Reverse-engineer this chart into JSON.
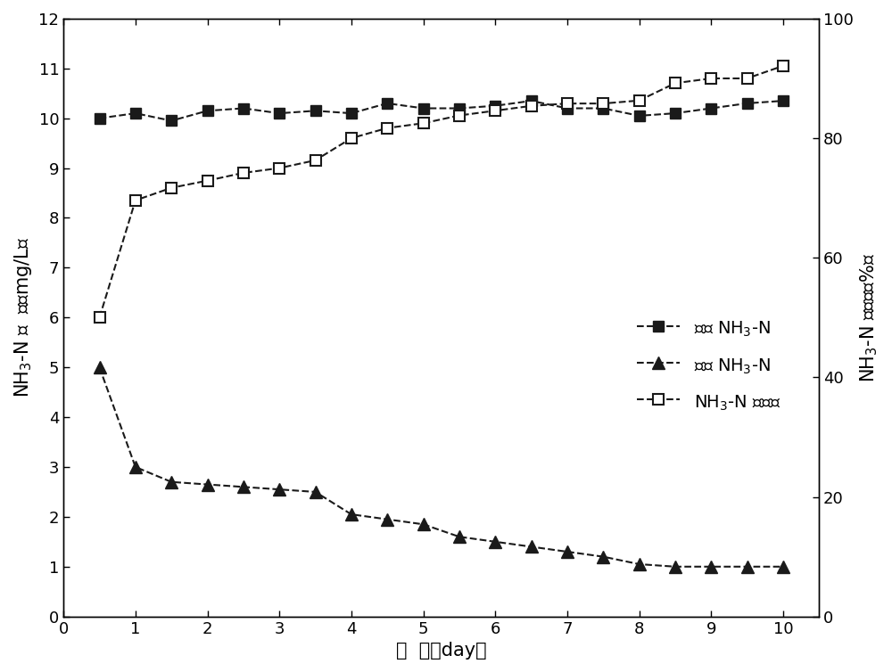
{
  "x_inlet": [
    0.5,
    1.0,
    1.5,
    2.0,
    2.5,
    3.0,
    3.5,
    4.0,
    4.5,
    5.0,
    5.5,
    6.0,
    6.5,
    7.0,
    7.5,
    8.0,
    8.5,
    9.0,
    9.5,
    10.0
  ],
  "y_inlet": [
    10.0,
    10.1,
    9.95,
    10.15,
    10.2,
    10.1,
    10.15,
    10.1,
    10.3,
    10.2,
    10.2,
    10.25,
    10.35,
    10.2,
    10.2,
    10.05,
    10.1,
    10.2,
    10.3,
    10.35
  ],
  "x_outlet": [
    0.5,
    1.0,
    1.5,
    2.0,
    2.5,
    3.0,
    3.5,
    4.0,
    4.5,
    5.0,
    5.5,
    6.0,
    6.5,
    7.0,
    7.5,
    8.0,
    8.5,
    9.0,
    9.5,
    10.0
  ],
  "y_outlet": [
    5.0,
    3.0,
    2.7,
    2.65,
    2.6,
    2.55,
    2.5,
    2.05,
    1.95,
    1.85,
    1.6,
    1.5,
    1.4,
    1.3,
    1.2,
    1.05,
    1.0,
    1.0,
    1.0,
    1.0
  ],
  "x_removal": [
    0.5,
    1.0,
    1.5,
    2.0,
    2.5,
    3.0,
    3.5,
    4.0,
    4.5,
    5.0,
    5.5,
    6.0,
    6.5,
    7.0,
    7.5,
    8.0,
    8.5,
    9.0,
    9.5,
    10.0
  ],
  "y_removal": [
    50.0,
    69.6,
    71.7,
    72.9,
    74.2,
    75.0,
    76.3,
    80.0,
    81.7,
    82.5,
    83.8,
    84.6,
    85.4,
    85.8,
    85.8,
    86.3,
    89.2,
    90.0,
    90.0,
    92.1
  ],
  "xlim": [
    0,
    10.5
  ],
  "ylim_left": [
    0,
    12
  ],
  "ylim_right": [
    0,
    100
  ],
  "xticks": [
    0,
    1,
    2,
    3,
    4,
    5,
    6,
    7,
    8,
    9,
    10
  ],
  "yticks_left": [
    0,
    1,
    2,
    3,
    4,
    5,
    6,
    7,
    8,
    9,
    10,
    11,
    12
  ],
  "yticks_right": [
    0,
    20,
    40,
    60,
    80,
    100
  ],
  "color_dark": "#1a1a1a",
  "marker_size": 8,
  "line_width": 1.5,
  "font_size": 15,
  "tick_font_size": 13,
  "legend_fontsize": 14
}
